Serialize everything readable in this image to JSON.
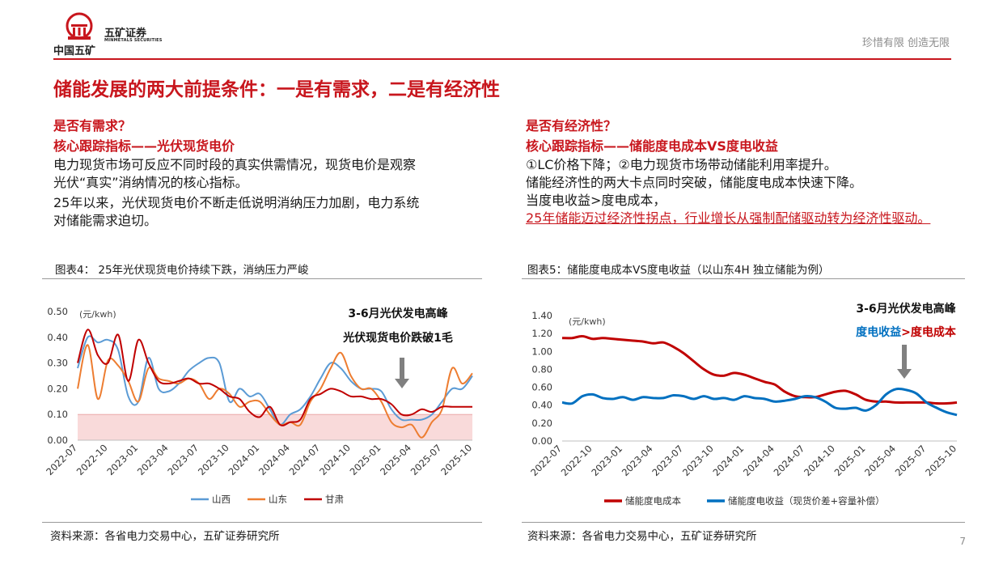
{
  "header": {
    "company_cn": "中国五矿",
    "company_name": "五矿证券",
    "company_en": "MINMETALS SECURITIES",
    "slogan": "珍惜有限 创造无限"
  },
  "page_title": "储能发展的两大前提条件：一是有需求，二是有经济性",
  "left": {
    "question": "是否有需求？",
    "key_indicator": "核心跟踪指标——光伏现货电价",
    "para1_line1": "电力现货市场可反应不同时段的真实供需情况，现货电价是观察",
    "para1_line2": "光伏“真实”消纳情况的核心指标。",
    "para2_line1": "25年以来，光伏现货电价不断走低说明消纳压力加剧，电力系统",
    "para2_line2": "对储能需求迫切。",
    "figure_title": "图表4： 25年光伏现货电价持续下跌，消纳压力严峻",
    "source": "资料来源：各省电力交易中心，五矿证券研究所"
  },
  "right": {
    "question": "是否有经济性？",
    "key_indicator": "核心跟踪指标——储能度电成本VS度电收益",
    "line1": "①LC价格下降；②电力现货市场带动储能利用率提升。",
    "line2": "储能经济性的两大卡点同时突破，储能度电成本快速下降。",
    "line3": "当度电收益>度电成本，",
    "line4": "25年储能迈过经济性拐点，行业增长从强制配储驱动转为经济性驱动。",
    "figure_title": "图表5：储能度电成本VS度电收益（以山东4H  独立储能为例）",
    "source": "资料来源：各省电力交易中心，五矿证券研究所"
  },
  "page_number": "7",
  "chart_data": [
    {
      "type": "line",
      "unit_label": "(元/kwh)",
      "annotation_line1": "3-6月光伏发电高峰",
      "annotation_line2": "光伏现货电价跌破1毛",
      "ylim": [
        0,
        0.5
      ],
      "yticks": [
        "0.00",
        "0.10",
        "0.20",
        "0.30",
        "0.40",
        "0.50"
      ],
      "xticks": [
        "2022-07",
        "2022-10",
        "2023-01",
        "2023-04",
        "2023-07",
        "2023-10",
        "2024-01",
        "2024-04",
        "2024-07",
        "2024-10",
        "2025-01",
        "2025-04",
        "2025-07",
        "2025-10"
      ],
      "shaded_band": [
        0,
        0.1
      ],
      "legend_position": "bottom",
      "x": [
        "2022-07",
        "2022-08",
        "2022-09",
        "2022-10",
        "2022-11",
        "2022-12",
        "2023-01",
        "2023-02",
        "2023-03",
        "2023-04",
        "2023-05",
        "2023-06",
        "2023-07",
        "2023-08",
        "2023-09",
        "2023-10",
        "2023-11",
        "2023-12",
        "2024-01",
        "2024-02",
        "2024-03",
        "2024-04",
        "2024-05",
        "2024-06",
        "2024-07",
        "2024-08",
        "2024-09",
        "2024-10",
        "2024-11",
        "2024-12",
        "2025-01",
        "2025-02",
        "2025-03",
        "2025-04",
        "2025-05",
        "2025-06",
        "2025-07",
        "2025-08",
        "2025-09",
        "2025-10"
      ],
      "series": [
        {
          "name": "山西",
          "color": "#5b9bd5",
          "values": [
            0.28,
            0.4,
            0.38,
            0.39,
            0.35,
            0.17,
            0.15,
            0.32,
            0.2,
            0.19,
            0.22,
            0.27,
            0.3,
            0.32,
            0.3,
            0.15,
            0.2,
            0.17,
            0.18,
            0.12,
            0.06,
            0.1,
            0.12,
            0.17,
            0.24,
            0.3,
            0.28,
            0.23,
            0.2,
            0.2,
            0.19,
            0.12,
            0.08,
            0.08,
            0.08,
            0.1,
            0.15,
            0.2,
            0.2,
            0.25
          ]
        },
        {
          "name": "山东",
          "color": "#ed7d31",
          "values": [
            0.2,
            0.37,
            0.16,
            0.31,
            0.29,
            0.23,
            0.15,
            0.28,
            0.24,
            0.23,
            0.22,
            0.24,
            0.22,
            0.16,
            0.2,
            0.18,
            0.13,
            0.15,
            0.15,
            0.1,
            0.06,
            0.07,
            0.06,
            0.15,
            0.2,
            0.28,
            0.34,
            0.25,
            0.2,
            0.2,
            0.15,
            0.07,
            0.05,
            0.06,
            0.01,
            0.07,
            0.12,
            0.28,
            0.22,
            0.26
          ]
        },
        {
          "name": "甘肃",
          "color": "#c00000",
          "values": [
            0.3,
            0.43,
            0.33,
            0.3,
            0.41,
            0.23,
            0.39,
            0.3,
            0.23,
            0.22,
            0.23,
            0.24,
            0.22,
            0.22,
            0.2,
            0.17,
            0.16,
            0.11,
            0.09,
            0.13,
            0.06,
            0.07,
            0.08,
            0.16,
            0.18,
            0.2,
            0.19,
            0.17,
            0.17,
            0.16,
            0.16,
            0.14,
            0.1,
            0.1,
            0.12,
            0.11,
            0.13,
            0.13,
            0.13,
            0.13
          ]
        }
      ]
    },
    {
      "type": "line",
      "unit_label": "(元/kwh)",
      "annotation_line1": "3-6月光伏发电高峰",
      "annotation_line2a": "度电收益",
      "annotation_line2b": ">度电成本",
      "ylim": [
        0,
        1.4
      ],
      "yticks": [
        "0.00",
        "0.20",
        "0.40",
        "0.60",
        "0.80",
        "1.00",
        "1.20",
        "1.40"
      ],
      "xticks": [
        "2022-07",
        "2022-10",
        "2023-01",
        "2023-04",
        "2023-07",
        "2023-10",
        "2024-01",
        "2024-04",
        "2024-07",
        "2024-10",
        "2025-01",
        "2025-04",
        "2025-07",
        "2025-10"
      ],
      "legend_position": "bottom",
      "x": [
        "2022-07",
        "2022-08",
        "2022-09",
        "2022-10",
        "2022-11",
        "2022-12",
        "2023-01",
        "2023-02",
        "2023-03",
        "2023-04",
        "2023-05",
        "2023-06",
        "2023-07",
        "2023-08",
        "2023-09",
        "2023-10",
        "2023-11",
        "2023-12",
        "2024-01",
        "2024-02",
        "2024-03",
        "2024-04",
        "2024-05",
        "2024-06",
        "2024-07",
        "2024-08",
        "2024-09",
        "2024-10",
        "2024-11",
        "2024-12",
        "2025-01",
        "2025-02",
        "2025-03",
        "2025-04",
        "2025-05",
        "2025-06",
        "2025-07",
        "2025-08",
        "2025-09",
        "2025-10"
      ],
      "series": [
        {
          "name": "储能度电成本",
          "color": "#c00000",
          "values": [
            1.15,
            1.15,
            1.17,
            1.14,
            1.15,
            1.14,
            1.13,
            1.12,
            1.11,
            1.09,
            1.1,
            1.05,
            0.98,
            0.89,
            0.8,
            0.74,
            0.73,
            0.76,
            0.74,
            0.7,
            0.66,
            0.63,
            0.55,
            0.5,
            0.49,
            0.49,
            0.52,
            0.55,
            0.56,
            0.52,
            0.46,
            0.44,
            0.44,
            0.43,
            0.43,
            0.43,
            0.43,
            0.42,
            0.42,
            0.43
          ]
        },
        {
          "name": "储能度电收益（现货价差+容量补偿）",
          "color": "#0070c0",
          "values": [
            0.43,
            0.42,
            0.5,
            0.52,
            0.48,
            0.47,
            0.49,
            0.46,
            0.49,
            0.48,
            0.48,
            0.51,
            0.5,
            0.47,
            0.5,
            0.47,
            0.48,
            0.46,
            0.5,
            0.48,
            0.47,
            0.44,
            0.45,
            0.47,
            0.5,
            0.49,
            0.44,
            0.37,
            0.36,
            0.37,
            0.34,
            0.4,
            0.52,
            0.58,
            0.57,
            0.53,
            0.43,
            0.37,
            0.32,
            0.29
          ]
        }
      ]
    }
  ]
}
